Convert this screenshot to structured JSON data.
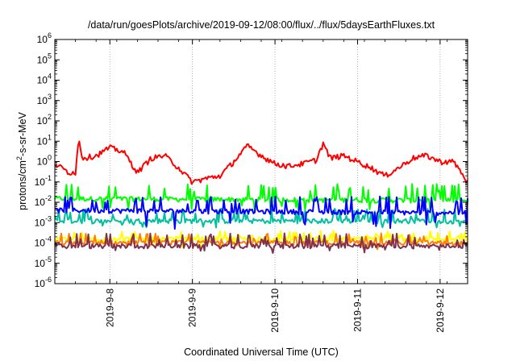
{
  "chart_data": {
    "type": "line",
    "title": "/data/run/goesPlots/archive/2019-09-12/08:00/flux/../flux/5daysEarthFluxes.txt",
    "xlabel": "Coordinated Universal Time (UTC)",
    "ylabel_parts": {
      "pre": "protons/cm",
      "sup": "2",
      "post": "-s-sr-MeV"
    },
    "yscale": "log",
    "ylim": [
      1e-06,
      1000000.0
    ],
    "y_ticks": [
      {
        "base": "10",
        "exp": "-6"
      },
      {
        "base": "10",
        "exp": "-5"
      },
      {
        "base": "10",
        "exp": "-4"
      },
      {
        "base": "10",
        "exp": "-3"
      },
      {
        "base": "10",
        "exp": "-2"
      },
      {
        "base": "10",
        "exp": "-1"
      },
      {
        "base": "10",
        "exp": "0"
      },
      {
        "base": "10",
        "exp": "1"
      },
      {
        "base": "10",
        "exp": "2"
      },
      {
        "base": "10",
        "exp": "3"
      },
      {
        "base": "10",
        "exp": "4"
      },
      {
        "base": "10",
        "exp": "5"
      },
      {
        "base": "10",
        "exp": "6"
      }
    ],
    "xlim": [
      "2019-09-07 08:00",
      "2019-09-12 08:00"
    ],
    "x_ticks": [
      "2019-9-8",
      "2019-9-9",
      "2019-9-10",
      "2019-9-11",
      "2019-9-12"
    ],
    "grid": true,
    "series": [
      {
        "color": "#ff0000",
        "times": [
          "2019-09-07 08:00",
          "2019-09-07 12:00",
          "2019-09-07 14:00",
          "2019-09-07 15:00",
          "2019-09-07 16:00",
          "2019-09-07 20:00",
          "2019-09-08 00:00",
          "2019-09-08 04:00",
          "2019-09-08 08:00",
          "2019-09-08 12:00",
          "2019-09-08 16:00",
          "2019-09-08 20:00",
          "2019-09-09 00:00",
          "2019-09-09 04:00",
          "2019-09-09 08:00",
          "2019-09-09 12:00",
          "2019-09-09 16:00",
          "2019-09-09 20:00",
          "2019-09-10 00:00",
          "2019-09-10 04:00",
          "2019-09-10 08:00",
          "2019-09-10 12:00",
          "2019-09-10 14:00",
          "2019-09-10 16:00",
          "2019-09-10 20:00",
          "2019-09-11 00:00",
          "2019-09-11 04:00",
          "2019-09-11 08:00",
          "2019-09-11 12:00",
          "2019-09-11 16:00",
          "2019-09-11 20:00",
          "2019-09-12 00:00",
          "2019-09-12 04:00",
          "2019-09-12 08:00"
        ],
        "values": [
          0.8,
          0.3,
          0.3,
          15,
          1.5,
          2.0,
          5.0,
          3.0,
          0.3,
          1.5,
          2.0,
          0.5,
          0.1,
          0.15,
          0.2,
          1.0,
          6.0,
          2.0,
          0.8,
          0.6,
          0.8,
          1.2,
          8.0,
          1.5,
          2.0,
          1.0,
          0.5,
          0.2,
          0.5,
          1.5,
          2.0,
          1.0,
          1.0,
          0.1
        ]
      },
      {
        "color": "#00ff00",
        "times": [
          "2019-09-07 08:00",
          "2019-09-12 08:00"
        ],
        "values": [
          0.015,
          0.012
        ],
        "spike_values": [
          0.08,
          0.005
        ]
      },
      {
        "color": "#0000ff",
        "times": [
          "2019-09-07 08:00",
          "2019-09-12 08:00"
        ],
        "values": [
          0.004,
          0.003
        ],
        "spike_values": [
          0.02,
          0.0008
        ]
      },
      {
        "color": "#00c0a0",
        "times": [
          "2019-09-07 08:00",
          "2019-09-12 08:00"
        ],
        "values": [
          0.0012,
          0.0012
        ],
        "spike_values": [
          0.005,
          0.0009
        ]
      },
      {
        "color": "#ffff00",
        "times": [
          "2019-09-07 08:00",
          "2019-09-12 08:00"
        ],
        "values": [
          0.00015,
          0.00015
        ],
        "spike_values": [
          0.0004,
          0.0001
        ]
      },
      {
        "color": "#ff8000",
        "times": [
          "2019-09-07 08:00",
          "2019-09-12 08:00"
        ],
        "values": [
          0.0001,
          0.0001
        ],
        "spike_values": [
          0.0003,
          8e-05
        ]
      },
      {
        "color": "#80304f",
        "times": [
          "2019-09-07 08:00",
          "2019-09-12 08:00"
        ],
        "values": [
          7e-05,
          7e-05
        ],
        "spike_values": [
          0.0003,
          5e-05
        ]
      }
    ]
  }
}
